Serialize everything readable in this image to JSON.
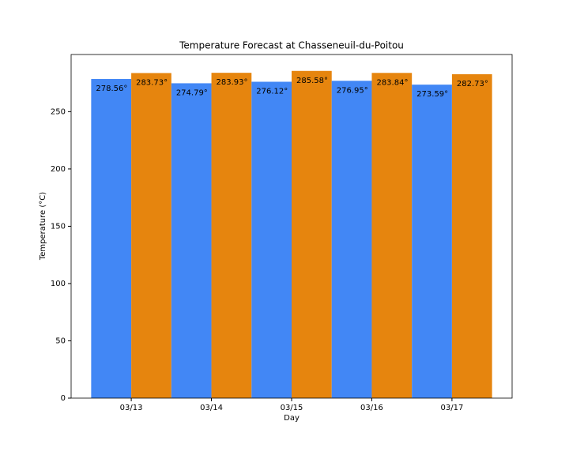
{
  "chart_data": {
    "type": "bar",
    "title": "Temperature Forecast at Chasseneuil-du-Poitou",
    "x_label": "Day",
    "y_label": "Temperature (°C)",
    "categories": [
      "03/13",
      "03/14",
      "03/15",
      "03/16",
      "03/17"
    ],
    "series": [
      {
        "color": "#4287f5",
        "values": [
          278.56,
          274.79,
          276.12,
          276.95,
          273.59
        ],
        "value_labels": [
          "278.56°",
          "274.79°",
          "276.12°",
          "276.95°",
          "273.59°"
        ]
      },
      {
        "color": "#e6850e",
        "values": [
          283.73,
          283.93,
          285.58,
          283.84,
          282.73
        ],
        "value_labels": [
          "283.73°",
          "283.93°",
          "285.58°",
          "283.84°",
          "282.73°"
        ]
      }
    ],
    "ylim": [
      0,
      299.9
    ],
    "yticks": [
      0,
      50,
      100,
      150,
      200,
      250
    ],
    "grid": false
  }
}
